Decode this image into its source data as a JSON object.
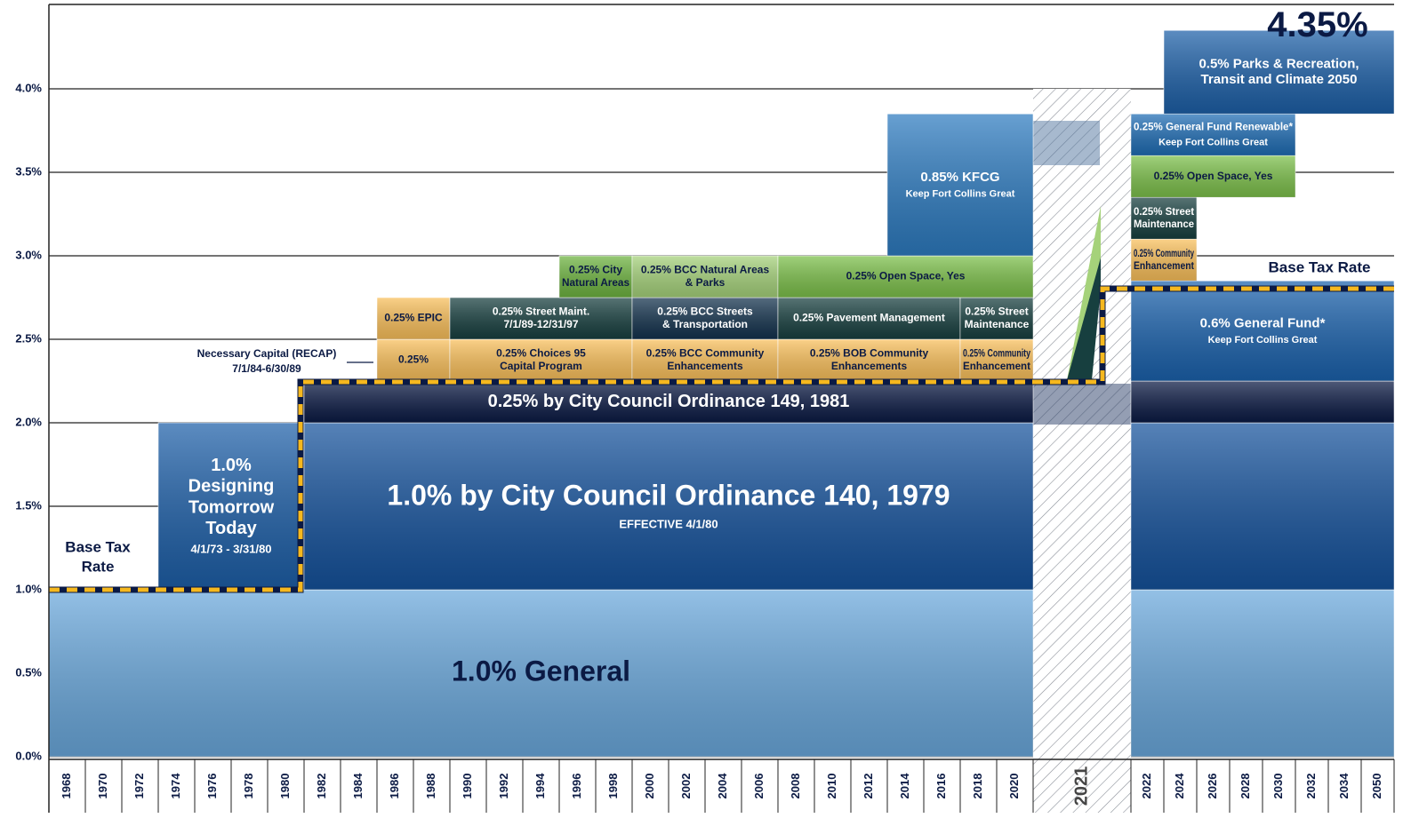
{
  "chart_data": {
    "type": "stacked-blocks",
    "ylim": [
      0,
      4.5
    ],
    "yticks": [
      {
        "value": 0,
        "label": "0.0%"
      },
      {
        "value": 0.5,
        "label": "0.5%"
      },
      {
        "value": 1,
        "label": "1.0%"
      },
      {
        "value": 1.5,
        "label": "1.5%"
      },
      {
        "value": 2,
        "label": "2.0%"
      },
      {
        "value": 2.5,
        "label": "2.5%"
      },
      {
        "value": 3,
        "label": "3.0%"
      },
      {
        "value": 3.5,
        "label": "3.5%"
      },
      {
        "value": 4,
        "label": "4.0%"
      }
    ],
    "grid": true,
    "categories": [
      "1968",
      "1970",
      "1972",
      "1974",
      "1976",
      "1978",
      "1980",
      "1982",
      "1984",
      "1986",
      "1988",
      "1990",
      "1992",
      "1994",
      "1996",
      "1998",
      "2000",
      "2002",
      "2004",
      "2006",
      "2008",
      "2010",
      "2012",
      "2014",
      "2016",
      "2018",
      "2020",
      "2021",
      "2022",
      "2024",
      "2026",
      "2028",
      "2030",
      "2032",
      "2034",
      "2050"
    ],
    "total": {
      "value": 4.35,
      "label": "4.35%"
    },
    "base_tax_rate_left": [
      "Base Tax",
      "Rate"
    ],
    "base_tax_rate_right": "Base Tax Rate",
    "recap_note": [
      "Necessary Capital (RECAP)",
      "7/1/84-6/30/89"
    ],
    "blocks": [
      {
        "lines": [
          "1.0% General"
        ],
        "from": "1968",
        "to": "2020",
        "rate": 1.0,
        "color": "#6aa8dc"
      },
      {
        "from": "2022",
        "to": "2050",
        "rate": 1.0,
        "color": "#6aa8dc"
      },
      {
        "lines": [
          "1.0%",
          "Designing",
          "Tomorrow",
          "Today"
        ],
        "sub": [
          "4/1/73 - 3/31/80"
        ],
        "from": "1974",
        "to": "1980",
        "rate": 1.0,
        "color": "#1d5fa8"
      },
      {
        "lines": [
          "1.0% by City Council Ordinance 140, 1979"
        ],
        "sub": [
          "EFFECTIVE 4/1/80"
        ],
        "from": "1982",
        "to": "2020",
        "rate": 1.0,
        "color": "#15529c"
      },
      {
        "from": "2022",
        "to": "2050",
        "rate": 1.0,
        "color": "#15529c"
      },
      {
        "lines": [
          "0.25% by City Council Ordinance 149, 1981"
        ],
        "from": "1982",
        "to": "2020",
        "rate": 0.25,
        "color": "#0b1a44"
      },
      {
        "from": "2022",
        "to": "2050",
        "rate": 0.25,
        "color": "#0b1a44"
      },
      {
        "lines": [
          "0.25%"
        ],
        "from": "1986",
        "to": "1988",
        "rate": 0.25,
        "color": "#f9bf5a"
      },
      {
        "lines": [
          "0.25% Choices 95",
          "Capital Program"
        ],
        "from": "1990",
        "to": "1998",
        "rate": 0.25,
        "color": "#f9bf5a"
      },
      {
        "lines": [
          "0.25% BCC Community",
          "Enhancements"
        ],
        "from": "2000",
        "to": "2006",
        "rate": 0.25,
        "color": "#f9bf5a"
      },
      {
        "lines": [
          "0.25% BOB Community",
          "Enhancements"
        ],
        "from": "2008",
        "to": "2016",
        "rate": 0.25,
        "color": "#f9bf5a"
      },
      {
        "lines": [
          "0.25% Community",
          "Enhancement"
        ],
        "from": "2018",
        "to": "2020",
        "rate": 0.25,
        "color": "#f9bf5a"
      },
      {
        "lines": [
          "0.25% EPIC"
        ],
        "from": "1986",
        "to": "1988",
        "rate": 0.25,
        "color": "#f9bf5a"
      },
      {
        "lines": [
          "0.25% Street Maint.",
          "7/1/89-12/31/97"
        ],
        "from": "1990",
        "to": "1998",
        "rate": 0.25,
        "color": "#173f3f"
      },
      {
        "lines": [
          "0.25% BCC Streets",
          "& Transportation"
        ],
        "from": "2000",
        "to": "2006",
        "rate": 0.25,
        "color": "#13324d"
      },
      {
        "lines": [
          "0.25% Pavement Management"
        ],
        "from": "2008",
        "to": "2016",
        "rate": 0.25,
        "color": "#173f3f"
      },
      {
        "lines": [
          "0.25% Street",
          "Maintenance"
        ],
        "from": "2018",
        "to": "2020",
        "rate": 0.25,
        "color": "#173f3f"
      },
      {
        "lines": [
          "0.25% City",
          "Natural Areas"
        ],
        "from": "1996",
        "to": "1998",
        "rate": 0.25,
        "color": "#6db33f"
      },
      {
        "lines": [
          "0.25% BCC Natural Areas",
          "& Parks"
        ],
        "from": "2000",
        "to": "2006",
        "rate": 0.25,
        "color": "#a5d27a"
      },
      {
        "lines": [
          "0.25% Open Space, Yes"
        ],
        "from": "2008",
        "to": "2020",
        "rate": 0.25,
        "color": "#7cc04a"
      },
      {
        "lines": [
          "0.85% KFCG"
        ],
        "sub": [
          "Keep Fort Collins Great"
        ],
        "from": "2014",
        "to": "2020",
        "rate": 0.85,
        "color": "#2d7bc0"
      },
      {
        "lines": [
          "0.6% General Fund*"
        ],
        "sub": [
          "Keep Fort Collins Great"
        ],
        "from": "2022",
        "to": "2050",
        "rate": 0.6,
        "color": "#1b62ad"
      },
      {
        "lines": [
          "0.25% Community",
          "Enhancement"
        ],
        "from": "2022",
        "to": "2024",
        "rate": 0.25,
        "color": "#f9bf5a"
      },
      {
        "lines": [
          "0.25% Street",
          "Maintenance"
        ],
        "from": "2022",
        "to": "2024",
        "rate": 0.25,
        "color": "#173f3f"
      },
      {
        "lines": [
          "0.25% Open Space, Yes"
        ],
        "from": "2022",
        "to": "2030",
        "rate": 0.25,
        "color": "#7cc04a"
      },
      {
        "lines": [
          "0.25% General Fund Renewable*"
        ],
        "sub": [
          "Keep Fort Collins Great"
        ],
        "from": "2022",
        "to": "2030",
        "rate": 0.25,
        "color": "#1f6db5"
      },
      {
        "lines": [
          "0.5% Parks & Recreation,",
          "Transit and Climate 2050"
        ],
        "from": "2024",
        "to": "2050",
        "rate": 0.5,
        "color": "#1d60a8"
      }
    ]
  }
}
